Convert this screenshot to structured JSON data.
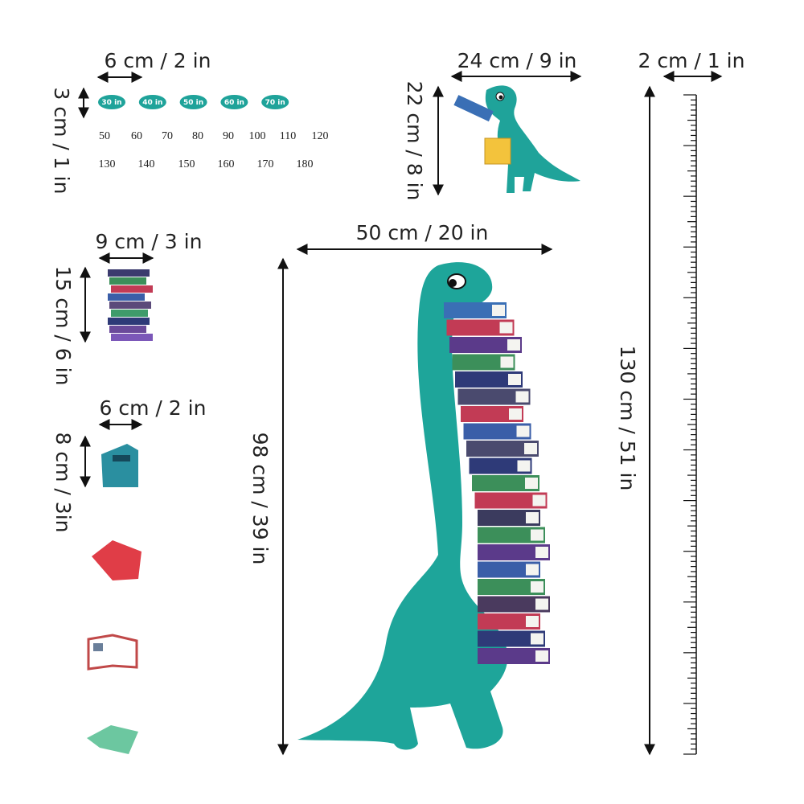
{
  "number_stickers": {
    "width_label": "6 cm / 2 in",
    "height_label": "3 cm / 1 in",
    "badges": [
      "30 in",
      "40 in",
      "50 in",
      "60 in",
      "70 in"
    ],
    "numbers_row1": [
      50,
      60,
      70,
      80,
      90,
      100,
      110,
      120
    ],
    "numbers_row2": [
      130,
      140,
      150,
      160,
      170,
      180
    ]
  },
  "small_dino": {
    "width_label": "24 cm / 9 in",
    "height_label": "22 cm / 8 in"
  },
  "ruler": {
    "width_label": "2 cm / 1 in",
    "height_label": "130 cm / 51 in"
  },
  "book_stack": {
    "width_label": "9 cm / 3 in",
    "height_label": "15 cm / 6 in"
  },
  "book": {
    "width_label": "6 cm / 2 in",
    "height_label": "8 cm / 3in"
  },
  "big_dino": {
    "width_label": "50 cm / 20 in",
    "height_label": "98 cm / 39 in"
  }
}
